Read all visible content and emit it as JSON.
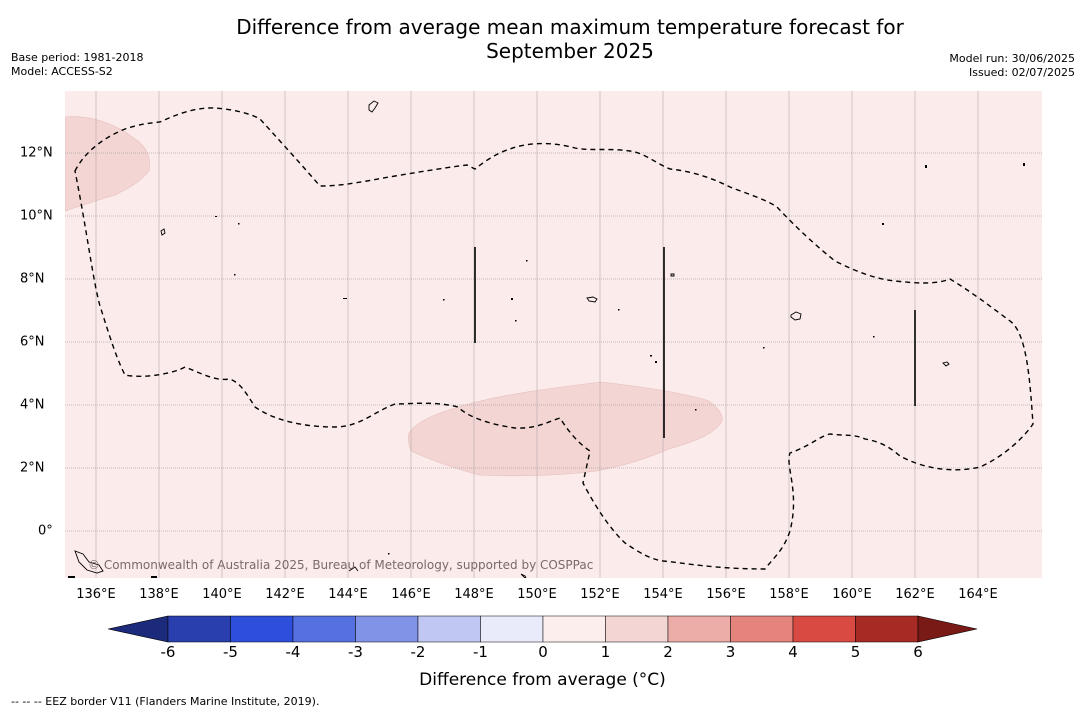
{
  "header": {
    "title_line1": "Difference from average mean maximum temperature forecast for",
    "title_line2": "September 2025",
    "base_period": "Base period: 1981-2018",
    "model": "Model: ACCESS-S2",
    "model_run": "Model run: 30/06/2025",
    "issued": "Issued: 02/07/2025"
  },
  "map": {
    "lon_range": [
      135,
      166
    ],
    "lat_range": [
      -1.5,
      14
    ],
    "x_ticks": [
      "136°E",
      "138°E",
      "140°E",
      "142°E",
      "144°E",
      "146°E",
      "148°E",
      "150°E",
      "152°E",
      "154°E",
      "156°E",
      "158°E",
      "160°E",
      "162°E",
      "164°E"
    ],
    "y_ticks": [
      "12°N",
      "10°N",
      "8°N",
      "6°N",
      "4°N",
      "2°N",
      "0°"
    ],
    "copyright": "© Commonwealth of Australia 2025, Bureau of Meteorology, supported by COSPPac",
    "background_category": "0 to 1",
    "background_color": "#fbebea",
    "anomaly_region_color": "#f3d5d4"
  },
  "colorbar": {
    "ticks": [
      "-6",
      "-5",
      "-4",
      "-3",
      "-2",
      "-1",
      "0",
      "1",
      "2",
      "3",
      "4",
      "5",
      "6"
    ],
    "colors": [
      "#2a3fae",
      "#2e4fdc",
      "#5570e0",
      "#8193e6",
      "#c1c7f3",
      "#e9ebfa",
      "#fdeeee",
      "#f3d5d4",
      "#ecaca7",
      "#e5847c",
      "#d94a42",
      "#a82a25"
    ],
    "low_extend_color": "#1b2a7a",
    "high_extend_color": "#7a1a16",
    "label": "Difference from average ($^\\circ$C)",
    "label_text": "Difference from average (°C)"
  },
  "footnote": "--  --  -- EEZ border V11 (Flanders Marine Institute, 2019)."
}
